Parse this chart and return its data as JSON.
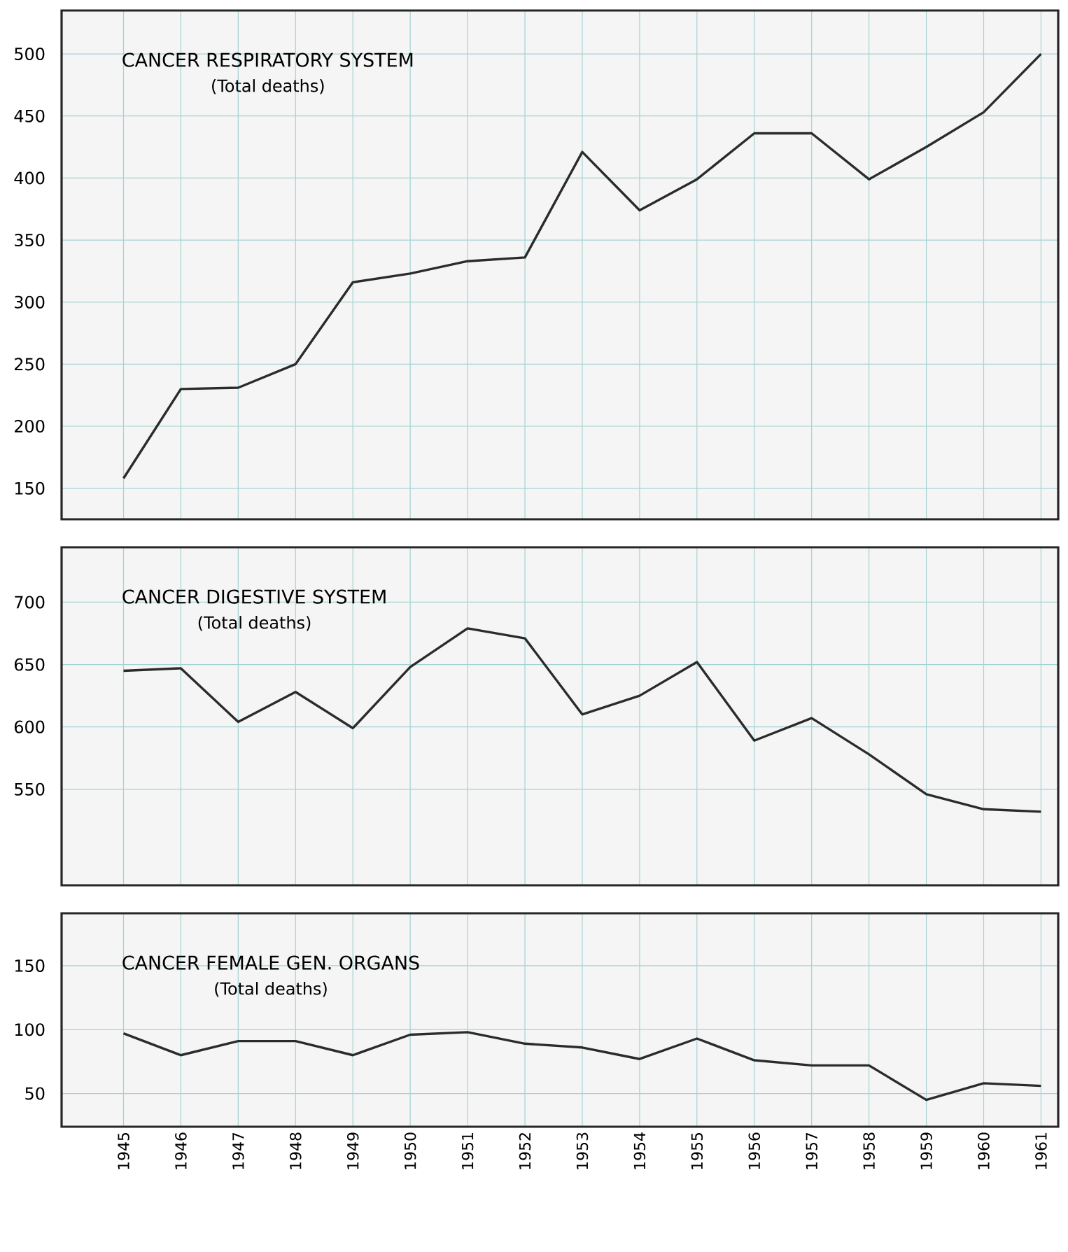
{
  "chart_data": [
    {
      "type": "line",
      "title": "CANCER RESPIRATORY SYSTEM",
      "subtitle": "(Total deaths)",
      "categories": [
        "1945",
        "1946",
        "1947",
        "1948",
        "1949",
        "1950",
        "1951",
        "1952",
        "1953",
        "1954",
        "1955",
        "1956",
        "1957",
        "1958",
        "1959",
        "1960",
        "1961"
      ],
      "series": [
        {
          "color": "#2b2b2b",
          "values": [
            158,
            230,
            231,
            250,
            316,
            323,
            333,
            336,
            421,
            374,
            399,
            436,
            436,
            399,
            425,
            453,
            500
          ]
        }
      ],
      "ylim": [
        125,
        535
      ],
      "yticks": [
        150,
        200,
        250,
        300,
        350,
        400,
        450,
        500
      ],
      "grid": true,
      "tick_labels": "y",
      "line_style": "solid"
    },
    {
      "type": "line",
      "title": "CANCER DIGESTIVE SYSTEM",
      "subtitle": "(Total deaths)",
      "categories": [
        "1945",
        "1946",
        "1947",
        "1948",
        "1949",
        "1950",
        "1951",
        "1952",
        "1953",
        "1954",
        "1955",
        "1956",
        "1957",
        "1958",
        "1959",
        "1960",
        "1961"
      ],
      "series": [
        {
          "color": "#2b2b2b",
          "values": [
            645,
            647,
            604,
            628,
            599,
            648,
            679,
            671,
            610,
            625,
            652,
            589,
            607,
            578,
            546,
            534,
            532
          ]
        }
      ],
      "ylim": [
        473,
        744
      ],
      "yticks": [
        550,
        600,
        650,
        700
      ],
      "grid": true,
      "tick_labels": "y",
      "line_style": "solid"
    },
    {
      "type": "line",
      "title": "CANCER FEMALE GEN. ORGANS",
      "subtitle": "(Total deaths)",
      "categories": [
        "1945",
        "1946",
        "1947",
        "1948",
        "1949",
        "1950",
        "1951",
        "1952",
        "1953",
        "1954",
        "1955",
        "1956",
        "1957",
        "1958",
        "1959",
        "1960",
        "1961"
      ],
      "series": [
        {
          "color": "#2b2b2b",
          "values": [
            97,
            80,
            91,
            91,
            80,
            96,
            98,
            89,
            86,
            77,
            93,
            76,
            72,
            72,
            45,
            58,
            56
          ]
        }
      ],
      "ylim": [
        24,
        191
      ],
      "yticks": [
        50,
        100,
        150
      ],
      "grid": true,
      "line_style": "solid"
    }
  ]
}
